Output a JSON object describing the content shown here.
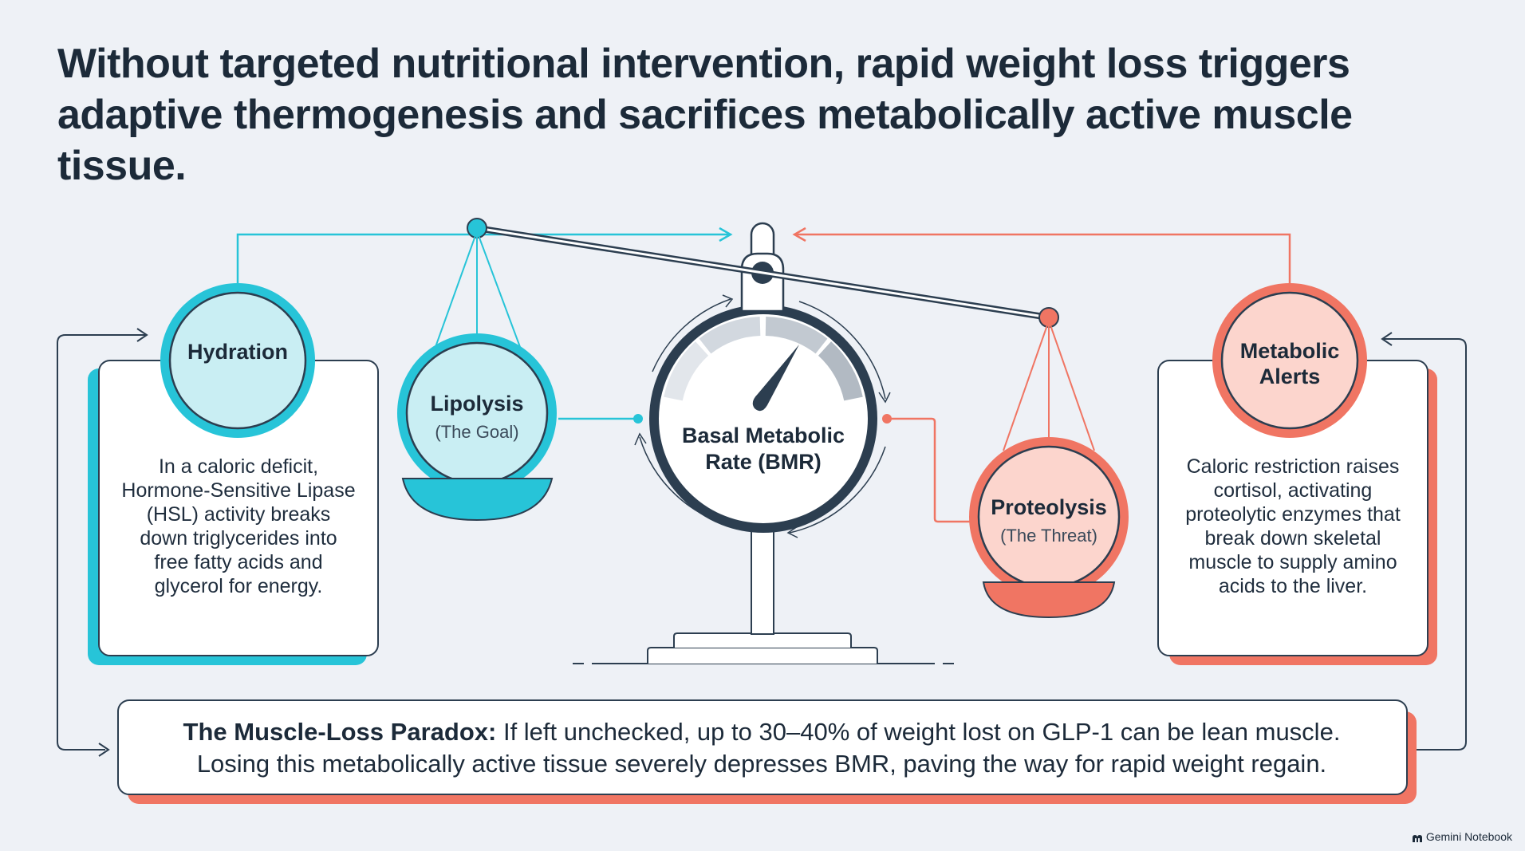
{
  "headline": "Without targeted nutritional intervention, rapid weight loss triggers adaptive thermogenesis and sacrifices metabolically active muscle tissue.",
  "colors": {
    "teal": "#27c4d8",
    "teal_light": "#c9eef3",
    "coral": "#f07563",
    "coral_light": "#fcd5cd",
    "navy": "#2c3e50",
    "background": "#eef1f6"
  },
  "nodes": {
    "hydration": {
      "label": "Hydration"
    },
    "lipolysis": {
      "label": "Lipolysis",
      "sub": "(The Goal)"
    },
    "bmr": {
      "label": "Basal Metabolic Rate (BMR)"
    },
    "proteolysis": {
      "label": "Proteolysis",
      "sub": "(The Threat)"
    },
    "metabolic_alerts": {
      "label": "Metabolic Alerts"
    }
  },
  "cards": {
    "left": "In a caloric deficit, Hormone-Sensitive Lipase (HSL) activity breaks down triglycerides into free fatty acids and glycerol for energy.",
    "right": "Caloric restriction raises cortisol, activating proteolytic enzymes that break down skeletal muscle to supply amino acids to the liver."
  },
  "paradox": {
    "title": "The Muscle-Loss Paradox:",
    "line1": "If left unchecked, up to 30–40% of weight lost on GLP-1 can be lean muscle.",
    "line2": "Losing this metabolically active tissue severely depresses BMR, paving the way for rapid weight regain."
  },
  "brand": {
    "label": "Gemini Notebook",
    "icon": "notebook-icon"
  }
}
